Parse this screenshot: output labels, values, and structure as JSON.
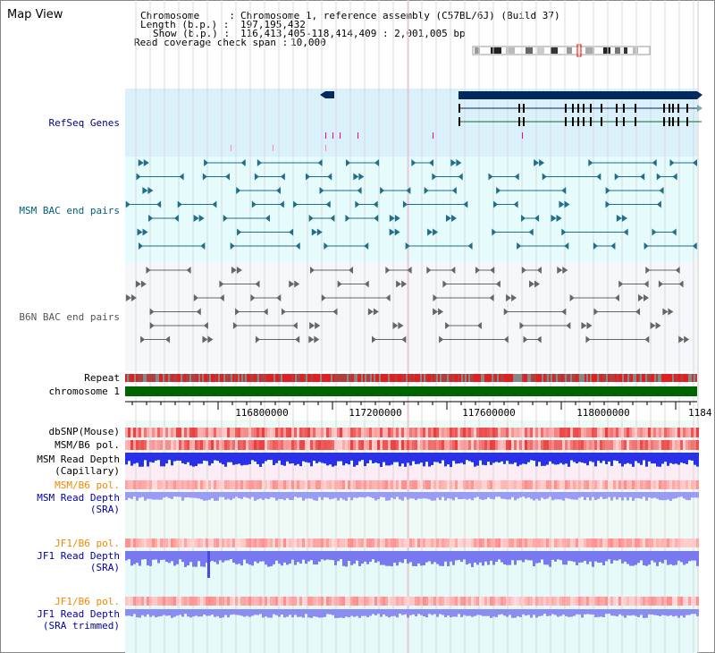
{
  "title": "Map View",
  "info": {
    "chromosome_label": "Chromosome     :",
    "chromosome_value": "Chromosome 1, reference assembly (C57BL/6J) (Build 37)",
    "length_label": "Length (b.p.) :",
    "length_value": "197,195,432",
    "show_label": "Show (b.p.) :",
    "show_value": "116,413,405-118,414,409 : 2,001,005 bp",
    "span_label": "Read coverage check span :",
    "span_value": "10,000"
  },
  "tracks": {
    "refseq": "RefSeq Genes",
    "msm_bac": "MSM BAC end pairs",
    "b6n_bac": "B6N BAC end pairs",
    "repeat": "Repeat",
    "chromosome": "chromosome 1",
    "dbsnp": "dbSNP(Mouse)",
    "msm_pol": "MSM/B6 pol.",
    "msm_depth_cap_1": "MSM Read Depth",
    "msm_depth_cap_2": "(Capillary)",
    "msm_pol2": "MSM/B6 pol.",
    "msm_depth_sra_1": "MSM Read Depth",
    "msm_depth_sra_2": "(SRA)",
    "jf1_pol": "JF1/B6 pol.",
    "jf1_depth_1": "JF1 Read Depth",
    "jf1_depth_2": "(SRA)",
    "jf1_pol2": "JF1/B6 pol.",
    "jf1_trim_1": "JF1 Read Depth",
    "jf1_trim_2": "(SRA trimmed)"
  },
  "axis": {
    "ticks": [
      "116800000",
      "117200000",
      "117600000",
      "118000000",
      "1184"
    ]
  },
  "colors": {
    "refseq_bg": "#daf0fb",
    "msm_bg": "#e6fbfb",
    "b6n_bg": "#f5f7fa",
    "lower_bg": "#eefaf6",
    "chromosome": "#006400",
    "gene_dark": "#002a5e",
    "teal": "#1f6e8c"
  }
}
